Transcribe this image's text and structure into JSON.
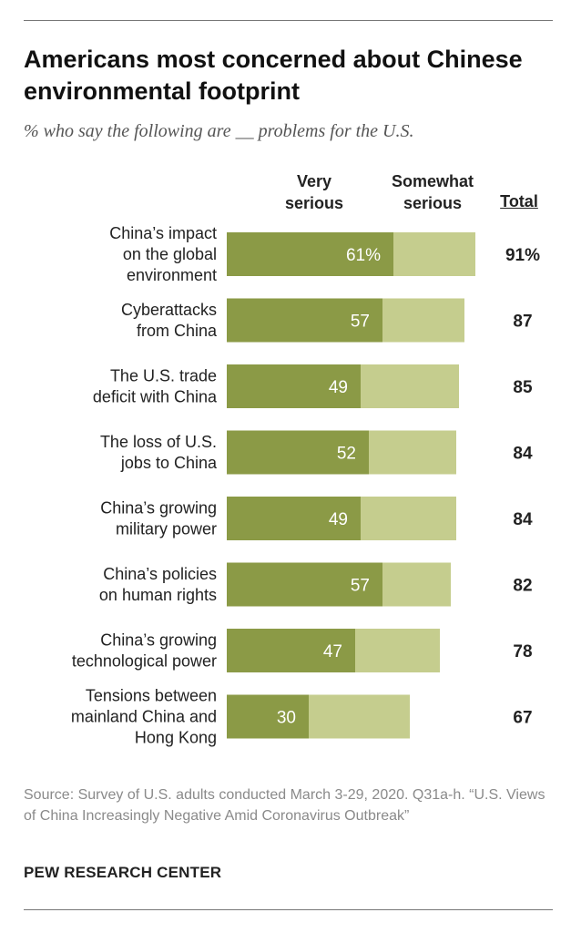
{
  "title": "Americans most concerned about Chinese environmental footprint",
  "subtitle": "% who say the following are __ problems for the U.S.",
  "headers": {
    "very": "Very\nserious",
    "somewhat": "Somewhat\nserious",
    "total": "Total"
  },
  "colors": {
    "very": "#8b9a46",
    "somewhat": "#c5cd8e",
    "value_text": "#ffffff"
  },
  "chart_data": {
    "type": "bar",
    "stacked": true,
    "orientation": "horizontal",
    "categories": [
      [
        "China’s impact",
        "on the global",
        "environment"
      ],
      [
        "Cyberattacks",
        "from China"
      ],
      [
        "The U.S. trade",
        "deficit with China"
      ],
      [
        "The loss of U.S.",
        "jobs to China"
      ],
      [
        "China’s growing",
        "military power"
      ],
      [
        "China’s policies",
        "on human rights"
      ],
      [
        "China’s growing",
        "technological power"
      ],
      [
        "Tensions between",
        "mainland China and",
        "Hong Kong"
      ]
    ],
    "series": [
      {
        "name": "Very serious",
        "values": [
          61,
          57,
          49,
          52,
          49,
          57,
          47,
          30
        ]
      },
      {
        "name": "Somewhat serious",
        "values": [
          30,
          30,
          36,
          32,
          35,
          25,
          31,
          37
        ]
      }
    ],
    "value_labels": [
      "61%",
      "57",
      "49",
      "52",
      "49",
      "57",
      "47",
      "30"
    ],
    "totals": [
      91,
      87,
      85,
      84,
      84,
      82,
      78,
      67
    ],
    "total_labels": [
      "91%",
      "87",
      "85",
      "84",
      "84",
      "82",
      "78",
      "67"
    ],
    "xlim": [
      0,
      100
    ]
  },
  "source": "Source: Survey of U.S. adults conducted March 3-29, 2020. Q31a-h. “U.S. Views of China Increasingly Negative Amid Coronavirus Outbreak”",
  "footer": "PEW RESEARCH CENTER"
}
